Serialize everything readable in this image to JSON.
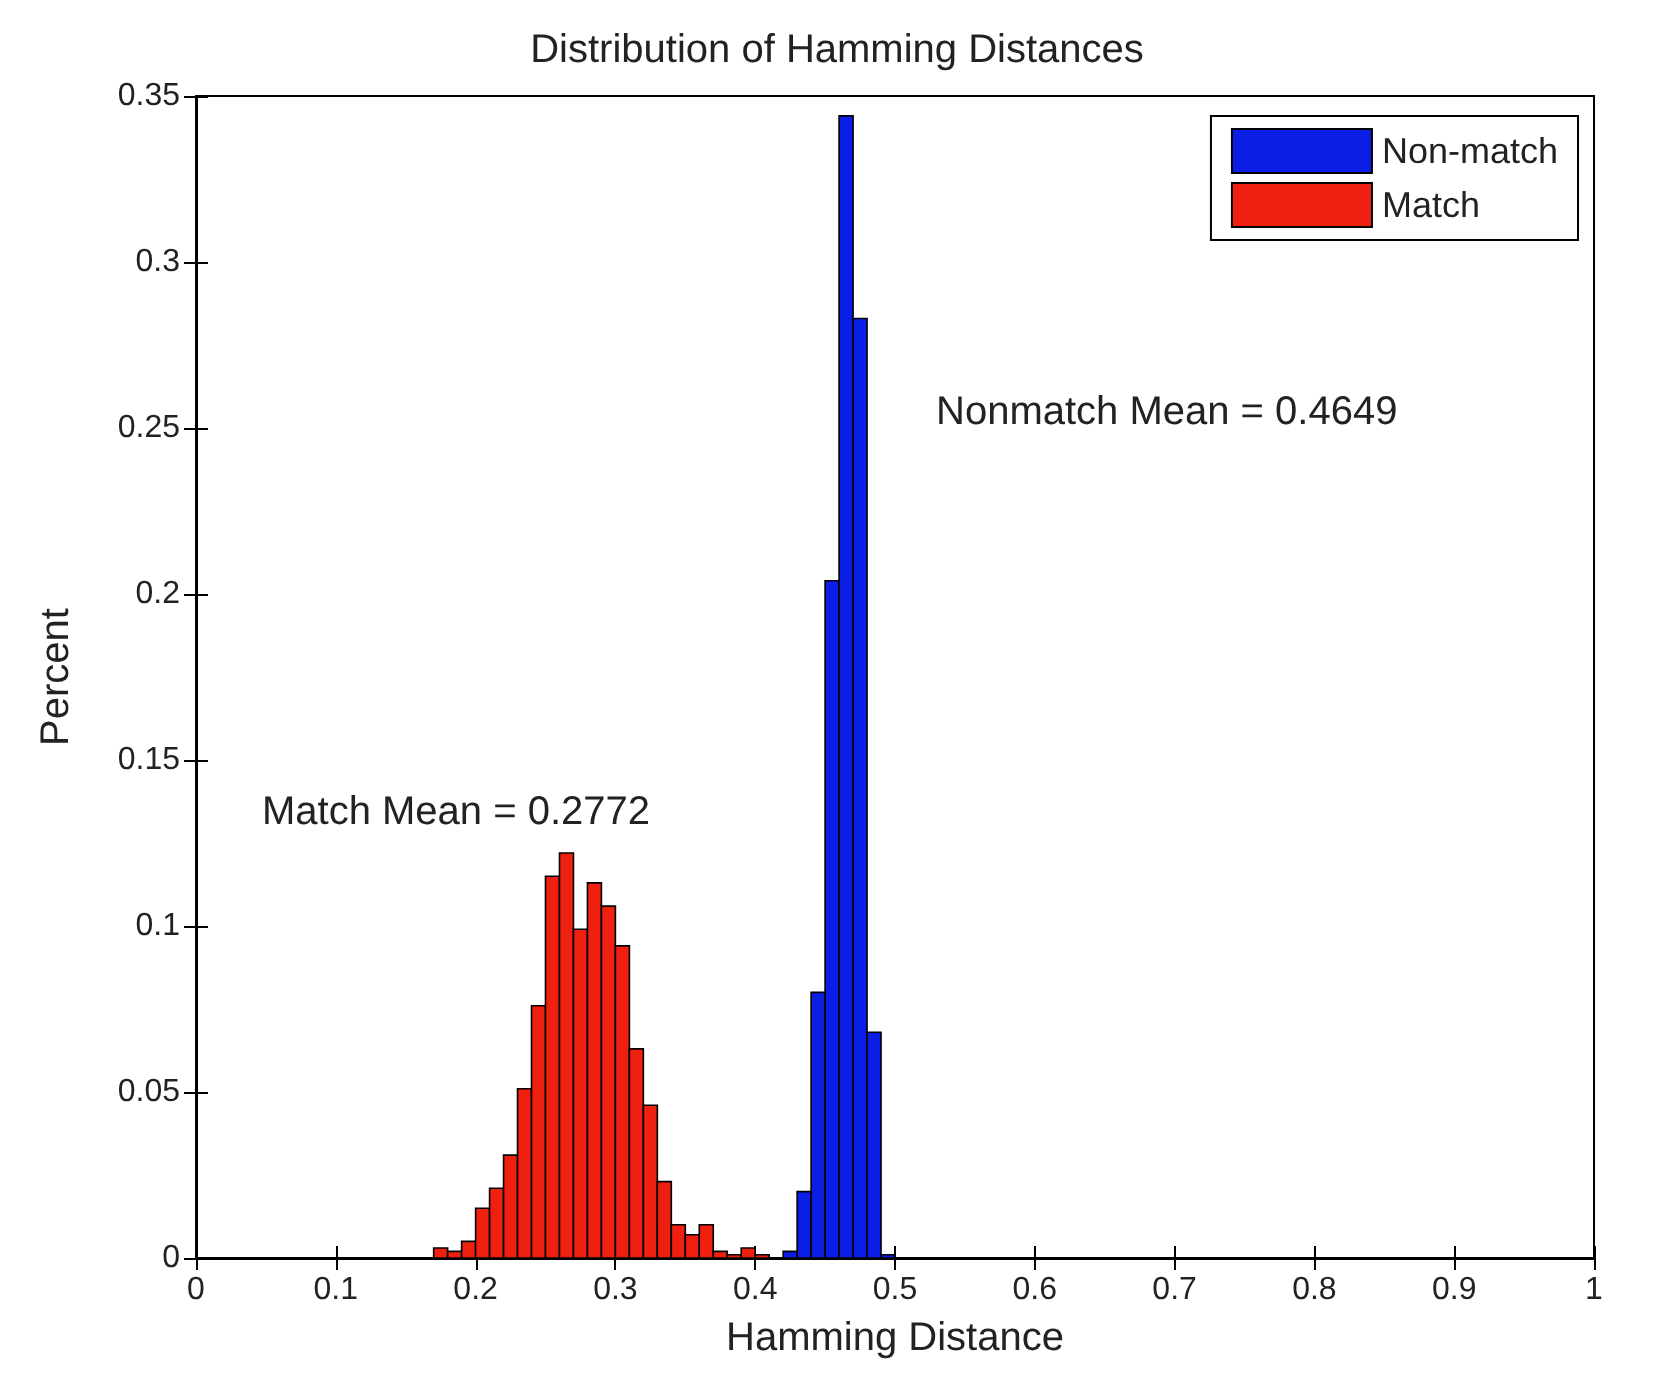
{
  "chart_data": {
    "type": "histogram",
    "title": "Distribution of Hamming Distances",
    "xlabel": "Hamming Distance",
    "ylabel": "Percent",
    "bins": [
      0.17,
      0.18,
      0.19,
      0.2,
      0.21,
      0.22,
      0.23,
      0.24,
      0.25,
      0.26,
      0.27,
      0.28,
      0.29,
      0.3,
      0.31,
      0.32,
      0.33,
      0.34,
      0.35,
      0.36,
      0.37,
      0.38,
      0.39,
      0.4,
      0.41,
      0.42,
      0.43,
      0.44,
      0.45,
      0.46,
      0.47,
      0.48,
      0.49,
      0.5
    ],
    "series": [
      {
        "name": "Non-match",
        "color": "#0a1ee6",
        "values": [
          null,
          null,
          null,
          null,
          null,
          null,
          null,
          null,
          null,
          null,
          null,
          null,
          null,
          null,
          null,
          null,
          null,
          null,
          null,
          null,
          null,
          null,
          null,
          null,
          null,
          0.002,
          0.02,
          0.08,
          0.204,
          0.344,
          0.283,
          0.068,
          0.001
        ]
      },
      {
        "name": "Match",
        "color": "#f02010",
        "values": [
          0.003,
          0.002,
          0.005,
          0.015,
          0.021,
          0.031,
          0.051,
          0.076,
          0.115,
          0.122,
          0.099,
          0.113,
          0.106,
          0.094,
          0.063,
          0.046,
          0.023,
          0.01,
          0.007,
          0.01,
          0.002,
          0.001,
          0.003,
          0.001,
          null,
          null,
          null,
          null,
          null,
          null,
          null,
          null,
          null
        ]
      }
    ],
    "annotations": [
      "Nonmatch Mean = 0.4649",
      "Match Mean = 0.2772"
    ],
    "xlim": [
      0,
      1
    ],
    "xticks": [
      0,
      0.1,
      0.2,
      0.3,
      0.4,
      0.5,
      0.6,
      0.7,
      0.8,
      0.9,
      1
    ],
    "ylim": [
      0,
      0.35
    ],
    "yticks": [
      0,
      0.05,
      0.1,
      0.15,
      0.2,
      0.25,
      0.3,
      0.35
    ],
    "grid": false,
    "legend": "top right"
  }
}
